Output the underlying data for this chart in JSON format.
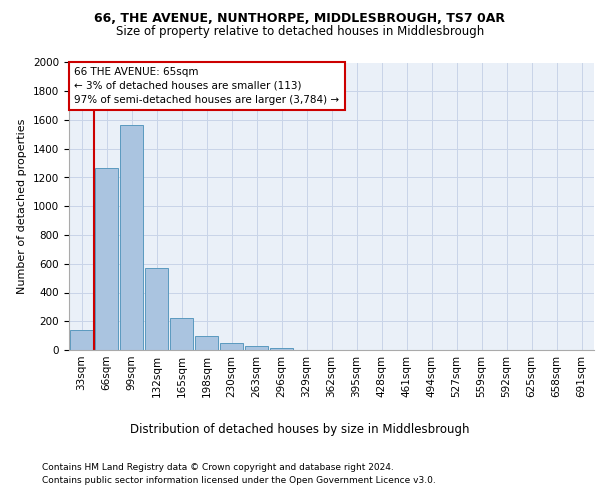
{
  "title_line1": "66, THE AVENUE, NUNTHORPE, MIDDLESBROUGH, TS7 0AR",
  "title_line2": "Size of property relative to detached houses in Middlesbrough",
  "xlabel": "Distribution of detached houses by size in Middlesbrough",
  "ylabel": "Number of detached properties",
  "footer_line1": "Contains HM Land Registry data © Crown copyright and database right 2024.",
  "footer_line2": "Contains public sector information licensed under the Open Government Licence v3.0.",
  "categories": [
    "33sqm",
    "66sqm",
    "99sqm",
    "132sqm",
    "165sqm",
    "198sqm",
    "230sqm",
    "263sqm",
    "296sqm",
    "329sqm",
    "362sqm",
    "395sqm",
    "428sqm",
    "461sqm",
    "494sqm",
    "527sqm",
    "559sqm",
    "592sqm",
    "625sqm",
    "658sqm",
    "691sqm"
  ],
  "values": [
    140,
    1265,
    1565,
    570,
    220,
    95,
    50,
    28,
    15,
    0,
    0,
    0,
    0,
    0,
    0,
    0,
    0,
    0,
    0,
    0,
    0
  ],
  "bar_color": "#aac4e0",
  "bar_edge_color": "#5a9abf",
  "grid_color": "#c8d4e8",
  "bg_color": "#eaf0f8",
  "annotation_text": "66 THE AVENUE: 65sqm\n← 3% of detached houses are smaller (113)\n97% of semi-detached houses are larger (3,784) →",
  "vline_color": "#cc0000",
  "annotation_box_color": "#ffffff",
  "annotation_box_edge": "#cc0000",
  "ylim": [
    0,
    2000
  ],
  "yticks": [
    0,
    200,
    400,
    600,
    800,
    1000,
    1200,
    1400,
    1600,
    1800,
    2000
  ],
  "title_fontsize": 9,
  "subtitle_fontsize": 8.5,
  "ylabel_fontsize": 8,
  "xlabel_fontsize": 8.5,
  "tick_fontsize": 7.5,
  "annotation_fontsize": 7.5,
  "footer_fontsize": 6.5
}
